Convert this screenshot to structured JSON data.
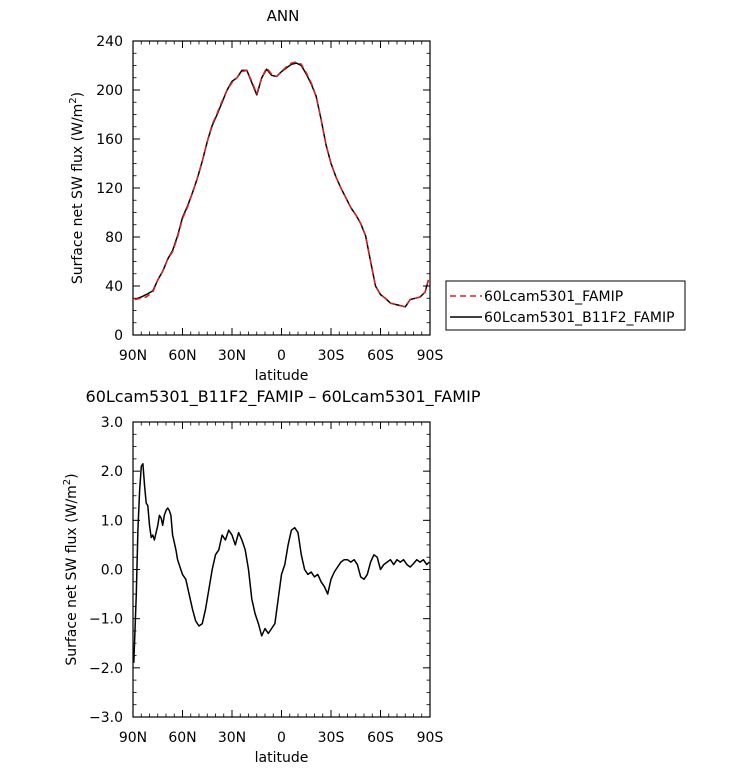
{
  "chart_data": [
    {
      "type": "line",
      "title": "ANN",
      "xlabel": "latitude",
      "ylabel_main": "Surface net SW flux (W/m",
      "ylabel_sup": "2",
      "ylabel_tail": ")",
      "xlim": [
        90,
        -90
      ],
      "ylim": [
        0,
        240
      ],
      "x_ticks": [
        {
          "v": 90,
          "label": "90N"
        },
        {
          "v": 60,
          "label": "60N"
        },
        {
          "v": 30,
          "label": "30N"
        },
        {
          "v": 0,
          "label": "0"
        },
        {
          "v": -30,
          "label": "30S"
        },
        {
          "v": -60,
          "label": "60S"
        },
        {
          "v": -90,
          "label": "90S"
        }
      ],
      "y_ticks": [
        0,
        40,
        80,
        120,
        160,
        200,
        240
      ],
      "series": [
        {
          "name": "60Lcam5301_FAMIP",
          "color": "#e02020",
          "dash": "dashed",
          "x": [
            89,
            85,
            82,
            78,
            75,
            72,
            69,
            66,
            63,
            60,
            57,
            54,
            51,
            48,
            45,
            42,
            39,
            36,
            33,
            30,
            27,
            24,
            21,
            18,
            15,
            12,
            9,
            6,
            3,
            0,
            -3,
            -6,
            -9,
            -12,
            -15,
            -18,
            -21,
            -24,
            -27,
            -30,
            -33,
            -36,
            -39,
            -42,
            -45,
            -48,
            -51,
            -54,
            -57,
            -60,
            -63,
            -66,
            -69,
            -72,
            -75,
            -78,
            -81,
            -84,
            -87,
            -89
          ],
          "y": [
            29,
            30,
            31,
            35,
            45,
            52,
            62,
            68,
            80,
            95,
            104,
            116,
            128,
            142,
            158,
            172,
            181,
            191,
            200,
            206,
            210,
            215,
            216,
            207,
            197,
            210,
            218,
            213,
            211,
            215,
            219,
            222,
            223,
            221,
            214,
            206,
            195,
            176,
            155,
            140,
            129,
            120,
            112,
            104,
            98,
            91,
            81,
            60,
            40,
            33,
            30,
            26,
            25,
            24,
            23,
            29,
            30,
            31,
            35,
            45
          ],
          "yfull": [
            29,
            30,
            31,
            35,
            45,
            52,
            62,
            68,
            80,
            95,
            104,
            116,
            128,
            142,
            158,
            172,
            181,
            191,
            200,
            206,
            210,
            215,
            216,
            207,
            197,
            210,
            218,
            213,
            211,
            215,
            219,
            222,
            223,
            221,
            214,
            206,
            195,
            176,
            155,
            140,
            129,
            120,
            112,
            104,
            98,
            91,
            81,
            60,
            40,
            33,
            30,
            26,
            25,
            24,
            23,
            29,
            30,
            31,
            35,
            45
          ]
        },
        {
          "name": "60Lcam5301_B11F2_FAMIP",
          "color": "#000000",
          "dash": "solid",
          "x": [
            89,
            85,
            82,
            78,
            75,
            72,
            69,
            66,
            63,
            60,
            57,
            54,
            51,
            48,
            45,
            42,
            39,
            36,
            33,
            30,
            27,
            24,
            21,
            18,
            15,
            12,
            9,
            6,
            3,
            0,
            -3,
            -6,
            -9,
            -12,
            -15,
            -18,
            -21,
            -24,
            -27,
            -30,
            -33,
            -36,
            -39,
            -42,
            -45,
            -48,
            -51,
            -54,
            -57,
            -60,
            -63,
            -66,
            -69,
            -72,
            -75,
            -78,
            -81,
            -84,
            -87,
            -89
          ],
          "y": [
            29,
            31,
            33,
            36,
            45,
            52,
            62,
            69,
            81,
            96,
            105,
            116,
            128,
            142,
            158,
            171,
            180,
            190,
            200,
            207,
            210,
            216,
            216,
            206,
            196,
            210,
            217,
            212,
            211,
            215,
            218,
            221,
            222,
            220,
            213,
            205,
            195,
            176,
            155,
            140,
            129,
            120,
            112,
            104,
            98,
            91,
            81,
            60,
            40,
            33,
            30,
            26,
            25,
            24,
            23,
            29,
            30,
            31,
            35,
            45
          ]
        }
      ],
      "legend_placement": "right"
    },
    {
      "type": "line",
      "title": "60Lcam5301_B11F2_FAMIP – 60Lcam5301_FAMIP",
      "xlabel": "latitude",
      "ylabel_main": "Surface net SW flux (W/m",
      "ylabel_sup": "2",
      "ylabel_tail": ")",
      "xlim": [
        90,
        -90
      ],
      "ylim": [
        -3.0,
        3.0
      ],
      "x_ticks": [
        {
          "v": 90,
          "label": "90N"
        },
        {
          "v": 60,
          "label": "60N"
        },
        {
          "v": 30,
          "label": "30N"
        },
        {
          "v": 0,
          "label": "0"
        },
        {
          "v": -30,
          "label": "30S"
        },
        {
          "v": -60,
          "label": "60S"
        },
        {
          "v": -90,
          "label": "90S"
        }
      ],
      "y_ticks": [
        {
          "v": -3.0,
          "label": "−3.0"
        },
        {
          "v": -2.0,
          "label": "−2.0"
        },
        {
          "v": -1.0,
          "label": "−1.0"
        },
        {
          "v": 0.0,
          "label": "0.0"
        },
        {
          "v": 1.0,
          "label": "1.0"
        },
        {
          "v": 2.0,
          "label": "2.0"
        },
        {
          "v": 3.0,
          "label": "3.0"
        }
      ],
      "series": [
        {
          "name": "",
          "color": "#000000",
          "x": [
            89.5,
            88,
            87,
            86,
            85,
            84,
            83,
            82,
            81,
            80,
            79,
            78,
            77,
            76,
            75,
            74,
            73,
            72,
            71,
            70,
            69,
            68,
            67,
            66,
            65,
            64,
            63,
            62,
            61,
            60,
            58,
            56,
            54,
            52,
            50,
            48,
            46,
            44,
            42,
            40,
            38,
            36,
            34,
            32,
            30,
            28,
            26,
            24,
            22,
            20,
            18,
            16,
            14,
            12,
            10,
            8,
            6,
            4,
            2,
            0,
            -2,
            -4,
            -6,
            -8,
            -10,
            -12,
            -14,
            -16,
            -18,
            -20,
            -22,
            -24,
            -26,
            -28,
            -30,
            -32,
            -34,
            -36,
            -38,
            -40,
            -42,
            -44,
            -46,
            -48,
            -50,
            -52,
            -54,
            -56,
            -58,
            -60,
            -62,
            -64,
            -66,
            -68,
            -70,
            -72,
            -74,
            -76,
            -78,
            -80,
            -82,
            -84,
            -86,
            -88,
            -89.5
          ],
          "y": [
            -1.9,
            -0.5,
            0.8,
            1.6,
            2.1,
            2.15,
            1.7,
            1.35,
            1.3,
            0.9,
            0.65,
            0.7,
            0.6,
            0.75,
            0.9,
            1.1,
            1.05,
            0.9,
            1.1,
            1.2,
            1.25,
            1.2,
            1.1,
            0.7,
            0.55,
            0.4,
            0.2,
            0.1,
            0.0,
            -0.1,
            -0.2,
            -0.5,
            -0.8,
            -1.05,
            -1.15,
            -1.1,
            -0.8,
            -0.4,
            0.0,
            0.3,
            0.4,
            0.7,
            0.6,
            0.8,
            0.7,
            0.5,
            0.75,
            0.6,
            0.4,
            0.0,
            -0.6,
            -0.9,
            -1.1,
            -1.35,
            -1.2,
            -1.3,
            -1.2,
            -1.1,
            -0.6,
            -0.1,
            0.1,
            0.5,
            0.8,
            0.85,
            0.75,
            0.3,
            0.0,
            -0.1,
            -0.05,
            -0.15,
            -0.1,
            -0.25,
            -0.35,
            -0.5,
            -0.2,
            -0.05,
            0.05,
            0.15,
            0.2,
            0.2,
            0.15,
            0.2,
            0.1,
            -0.15,
            -0.2,
            -0.1,
            0.15,
            0.3,
            0.25,
            0.0,
            0.1,
            0.15,
            0.2,
            0.1,
            0.2,
            0.15,
            0.2,
            0.1,
            0.05,
            0.12,
            0.2,
            0.15,
            0.2,
            0.1,
            0.15
          ]
        }
      ]
    }
  ]
}
